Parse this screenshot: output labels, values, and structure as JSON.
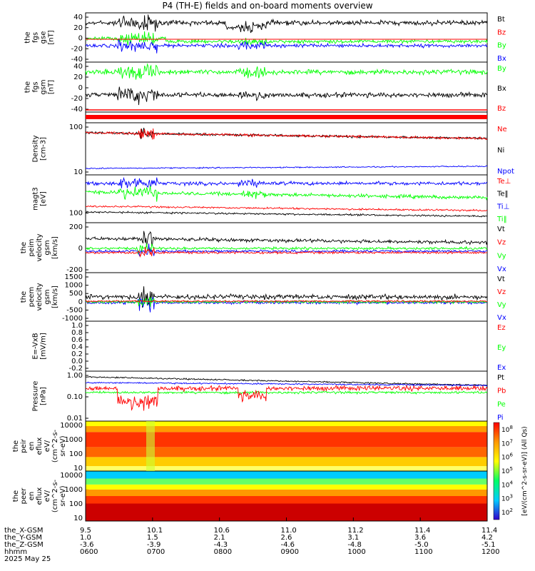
{
  "title": "P4 (TH-E) fields and on-board moments overview",
  "date": "2025 May 25",
  "colors": {
    "black": "#000000",
    "red": "#ff0000",
    "green": "#00ff00",
    "blue": "#0000ff"
  },
  "chart_data": {
    "type": "line",
    "panels": [
      {
        "id": "fgs_gse",
        "ylabel_lines": [
          "the",
          "fgs",
          "gse",
          "[nT]"
        ],
        "ticks": [
          "40",
          "20",
          "0",
          "-20",
          "-40"
        ],
        "legend": [
          {
            "name": "Bt",
            "color": "black"
          },
          {
            "name": "Bz",
            "color": "red"
          },
          {
            "name": "By",
            "color": "green"
          },
          {
            "name": "Bx",
            "color": "blue"
          }
        ]
      },
      {
        "id": "fgs_gsm",
        "ylabel_lines": [
          "the",
          "fgs",
          "gsm",
          "[nT]"
        ],
        "ticks": [
          "40",
          "20",
          "0",
          "-20",
          "-40"
        ],
        "legend": [
          {
            "name": "By",
            "color": "green"
          },
          {
            "name": "Bx",
            "color": "black"
          },
          {
            "name": "Bz",
            "color": "red"
          }
        ]
      },
      {
        "id": "density",
        "ylabel_lines": [
          "Density",
          "[cm-3]"
        ],
        "ticks": [
          "100",
          "10"
        ],
        "legend": [
          {
            "name": "Ne",
            "color": "red"
          },
          {
            "name": "Ni",
            "color": "black"
          },
          {
            "name": "Npot",
            "color": "blue"
          }
        ]
      },
      {
        "id": "temp",
        "ylabel_lines": [
          "magt3",
          "[eV]"
        ],
        "ticks": [
          "100"
        ],
        "legend": [
          {
            "name": "Te⊥",
            "color": "red"
          },
          {
            "name": "Te‖",
            "color": "black"
          },
          {
            "name": "Ti⊥",
            "color": "blue"
          },
          {
            "name": "Ti‖",
            "color": "green"
          }
        ]
      },
      {
        "id": "peim_vel",
        "ylabel_lines": [
          "the",
          "peim",
          "velocity",
          "gsm",
          "[km/s]"
        ],
        "ticks": [
          "200",
          "0",
          "-200"
        ],
        "legend": [
          {
            "name": "Vt",
            "color": "black"
          },
          {
            "name": "Vz",
            "color": "red"
          },
          {
            "name": "Vy",
            "color": "green"
          },
          {
            "name": "Vx",
            "color": "blue"
          }
        ]
      },
      {
        "id": "peem_vel",
        "ylabel_lines": [
          "the",
          "peem",
          "velocity",
          "gsm",
          "[km/s]"
        ],
        "ticks": [
          "1500",
          "1000",
          "500",
          "0",
          "-500",
          "-1000"
        ],
        "legend": [
          {
            "name": "Vt",
            "color": "black"
          },
          {
            "name": "Vz",
            "color": "red"
          },
          {
            "name": "Vy",
            "color": "green"
          },
          {
            "name": "Vx",
            "color": "blue"
          }
        ]
      },
      {
        "id": "efield",
        "ylabel_lines": [
          "E=-VxB",
          "[mV/m]"
        ],
        "ticks": [
          "1.0",
          "0.8",
          "0.6",
          "0.4",
          "0.2",
          "0.0",
          "-0.2"
        ],
        "legend": [
          {
            "name": "Ez",
            "color": "red"
          },
          {
            "name": "Ey",
            "color": "green"
          },
          {
            "name": "Ex",
            "color": "blue"
          }
        ]
      },
      {
        "id": "pressure",
        "ylabel_lines": [
          "Pressure",
          "[nPa]"
        ],
        "ticks": [
          "1.00",
          "0.10",
          "0.01"
        ],
        "legend": [
          {
            "name": "Pt",
            "color": "black"
          },
          {
            "name": "Pb",
            "color": "red"
          },
          {
            "name": "Pe",
            "color": "green"
          },
          {
            "name": "Pi",
            "color": "blue"
          }
        ]
      },
      {
        "id": "peir_spec",
        "ylabel_lines": [
          "the",
          "peir",
          "en",
          "eflux",
          "eV/",
          "(cm^2-s-",
          "sr-eV)"
        ],
        "ticks": [
          "10000",
          "1000",
          "100",
          "10"
        ],
        "legend": []
      },
      {
        "id": "peer_spec",
        "ylabel_lines": [
          "the",
          "peer",
          "en",
          "eflux",
          "eV/",
          "(cm^2-s-",
          "sr-eV)"
        ],
        "ticks": [
          "10000",
          "1000",
          "100",
          "10"
        ],
        "legend": []
      }
    ],
    "colorbar": {
      "label": "[eV/(cm^2-s-sr-eV)] (All Qs)",
      "ticks": [
        "10^8",
        "10^7",
        "10^6",
        "10^5",
        "10^4",
        "10^3",
        "10^2"
      ]
    },
    "x_axis": {
      "rows": [
        {
          "name": "the_X-GSM",
          "values": [
            "9.5",
            "10.1",
            "10.6",
            "11.0",
            "11.2",
            "11.4",
            "11.4"
          ]
        },
        {
          "name": "the_Y-GSM",
          "values": [
            "1.0",
            "1.5",
            "2.1",
            "2.6",
            "3.1",
            "3.6",
            "4.2"
          ]
        },
        {
          "name": "the_Z-GSM",
          "values": [
            "-3.6",
            "-3.9",
            "-4.3",
            "-4.6",
            "-4.8",
            "-5.0",
            "-5.1"
          ]
        },
        {
          "name": "hhmm",
          "values": [
            "0600",
            "0700",
            "0800",
            "0900",
            "1000",
            "1100",
            "1200"
          ]
        }
      ]
    }
  }
}
